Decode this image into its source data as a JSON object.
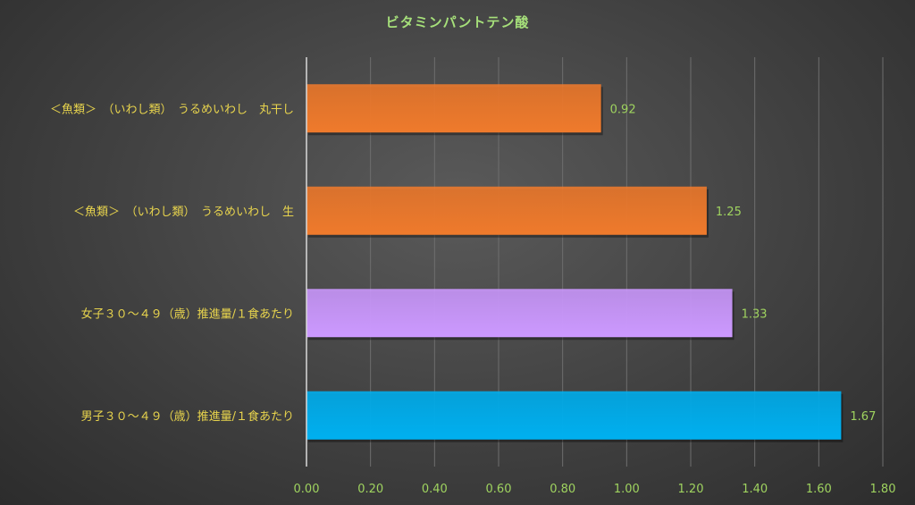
{
  "chart_data": {
    "type": "bar",
    "orientation": "horizontal",
    "title": "ビタミンパントテン酸",
    "categories": [
      "＜魚類＞　（いわし類）　うるめいわし　丸干し",
      "＜魚類＞　（いわし類）　うるめいわし　生",
      "女子３０～４９（歳）推進量/１食あたり",
      "男子３０～４９（歳）推進量/１食あたり"
    ],
    "values": [
      0.92,
      1.25,
      1.33,
      1.67
    ],
    "value_labels": [
      "0.92",
      "1.25",
      "1.33",
      "1.67"
    ],
    "bar_colors": [
      "#ef7a2c",
      "#ef7a2c",
      "#cc99ff",
      "#00b0f0"
    ],
    "xlim": [
      0,
      1.8
    ],
    "x_ticks": [
      "0.00",
      "0.20",
      "0.40",
      "0.60",
      "0.80",
      "1.00",
      "1.20",
      "1.40",
      "1.60",
      "1.80"
    ],
    "grid": true,
    "legend": "none"
  },
  "colors": {
    "title": "#a6e07a",
    "category_label": "#e8d44d",
    "tick_label": "#9fd35f",
    "value_label": "#9fd35f",
    "gridline": "#6e6e6e",
    "axis": "#d9d9d9"
  }
}
